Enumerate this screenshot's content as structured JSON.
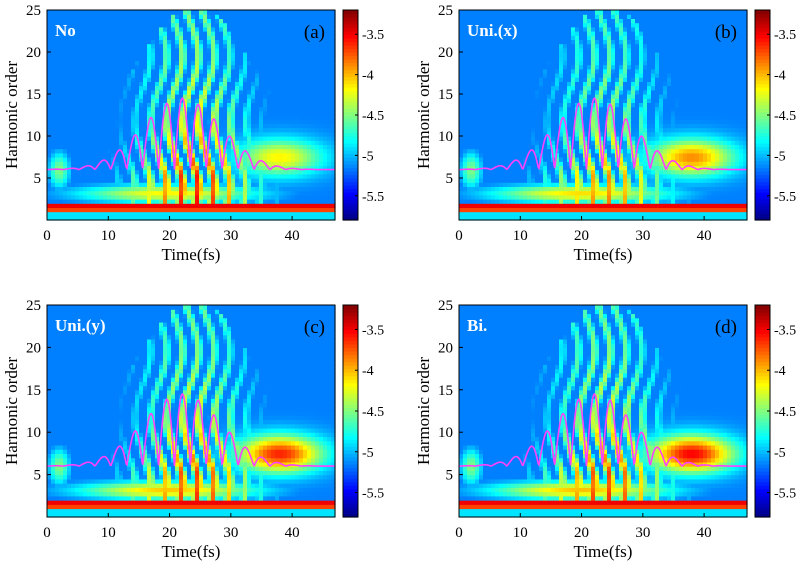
{
  "chart_data": [
    {
      "type": "heatmap",
      "panel_label": "(a)",
      "corner_text": "No",
      "xlabel": "Time(fs)",
      "ylabel": "Harmonic order",
      "xlim": [
        0,
        47
      ],
      "ylim": [
        0,
        25
      ],
      "xticks": [
        "0",
        "10",
        "20",
        "30",
        "40"
      ],
      "yticks": [
        "5",
        "10",
        "15",
        "20",
        "25"
      ],
      "colorbar": {
        "range": [
          -5.8,
          -3.2
        ],
        "ticks": [
          "-3.5",
          "-4",
          "-4.5",
          "-5",
          "-5.5"
        ]
      },
      "plateau_strength": 0.9,
      "lowband_strength": 0.55,
      "overlay": {
        "baseline": 6,
        "peak": 14.5,
        "center_fs": 22,
        "width_fs": 9,
        "period_fs": 2.6
      }
    },
    {
      "type": "heatmap",
      "panel_label": "(b)",
      "corner_text": "Uni.(x)",
      "xlabel": "Time(fs)",
      "ylabel": "Harmonic order",
      "xlim": [
        0,
        47
      ],
      "ylim": [
        0,
        25
      ],
      "xticks": [
        "0",
        "10",
        "20",
        "30",
        "40"
      ],
      "yticks": [
        "5",
        "10",
        "15",
        "20",
        "25"
      ],
      "colorbar": {
        "range": [
          -5.8,
          -3.2
        ],
        "ticks": [
          "-3.5",
          "-4",
          "-4.5",
          "-5",
          "-5.5"
        ]
      },
      "plateau_strength": 0.75,
      "lowband_strength": 0.7,
      "overlay": {
        "baseline": 6,
        "peak": 14.5,
        "center_fs": 22,
        "width_fs": 9,
        "period_fs": 2.6
      }
    },
    {
      "type": "heatmap",
      "panel_label": "(c)",
      "corner_text": "Uni.(y)",
      "xlabel": "Time(fs)",
      "ylabel": "Harmonic order",
      "xlim": [
        0,
        47
      ],
      "ylim": [
        0,
        25
      ],
      "xticks": [
        "0",
        "10",
        "20",
        "30",
        "40"
      ],
      "yticks": [
        "5",
        "10",
        "15",
        "20",
        "25"
      ],
      "colorbar": {
        "range": [
          -5.8,
          -3.2
        ],
        "ticks": [
          "-3.5",
          "-4",
          "-4.5",
          "-5",
          "-5.5"
        ]
      },
      "plateau_strength": 0.85,
      "lowband_strength": 0.85,
      "overlay": {
        "baseline": 6,
        "peak": 14.5,
        "center_fs": 22,
        "width_fs": 9,
        "period_fs": 2.6
      }
    },
    {
      "type": "heatmap",
      "panel_label": "(d)",
      "corner_text": "Bi.",
      "xlabel": "Time(fs)",
      "ylabel": "Harmonic order",
      "xlim": [
        0,
        47
      ],
      "ylim": [
        0,
        25
      ],
      "xticks": [
        "0",
        "10",
        "20",
        "30",
        "40"
      ],
      "yticks": [
        "5",
        "10",
        "15",
        "20",
        "25"
      ],
      "colorbar": {
        "range": [
          -5.8,
          -3.2
        ],
        "ticks": [
          "-3.5",
          "-4",
          "-4.5",
          "-5",
          "-5.5"
        ]
      },
      "plateau_strength": 0.85,
      "lowband_strength": 0.9,
      "overlay": {
        "baseline": 6,
        "peak": 14.5,
        "center_fs": 22,
        "width_fs": 9,
        "period_fs": 2.6
      }
    }
  ],
  "colors": {
    "overlay_line": "#ff40ff",
    "background": "#ffffff",
    "axis": "#000000",
    "corner_text": "#ffffff"
  }
}
